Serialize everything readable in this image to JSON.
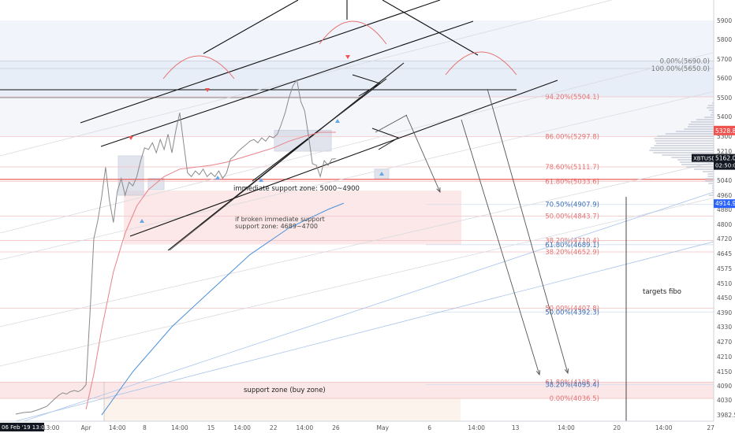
{
  "chart_data": {
    "type": "line",
    "symbol": "XBTUSD",
    "price_axis": {
      "ticks": [
        3982.5,
        4030,
        4090,
        4150,
        4210,
        4270,
        4330,
        4390,
        4450,
        4510,
        4575,
        4645,
        4720,
        4800,
        4880,
        4960,
        5040,
        5120,
        5210,
        5300,
        5400,
        5500,
        5600,
        5700,
        5800,
        5900
      ],
      "labels": [
        "3982.5",
        "4030",
        "4090",
        "4150",
        "4210",
        "4270",
        "4330",
        "4390",
        "4450",
        "4510",
        "4575",
        "4645",
        "4720",
        "4800",
        "4880",
        "4960",
        "5040",
        "5120",
        "5210",
        "5300",
        "5400",
        "5500",
        "5600",
        "5700",
        "5800",
        "5900"
      ],
      "current_price_tag": "XBTUSD",
      "current_price": "5162.0",
      "countdown": "02:50:01",
      "last_high": "5328.8",
      "ma_price": "4914.9"
    },
    "time_axis": {
      "labels": [
        {
          "t": 0,
          "text": "06 Feb '19  13:00",
          "highlight": true
        },
        {
          "t": 9,
          "text": "13:00"
        },
        {
          "t": 18,
          "text": "Apr"
        },
        {
          "t": 26,
          "text": "14:00"
        },
        {
          "t": 33,
          "text": "8"
        },
        {
          "t": 42,
          "text": "14:00"
        },
        {
          "t": 50,
          "text": "15"
        },
        {
          "t": 58,
          "text": "14:00"
        },
        {
          "t": 66,
          "text": "22"
        },
        {
          "t": 74,
          "text": "14:00"
        },
        {
          "t": 82,
          "text": "26"
        },
        {
          "t": 94,
          "text": "May"
        },
        {
          "t": 106,
          "text": "6"
        },
        {
          "t": 118,
          "text": "14:00"
        },
        {
          "t": 128,
          "text": "13"
        },
        {
          "t": 141,
          "text": "14:00"
        },
        {
          "t": 154,
          "text": "20"
        },
        {
          "t": 166,
          "text": "14:00"
        },
        {
          "t": 178,
          "text": "27"
        }
      ]
    },
    "price_series": [
      {
        "t": 0,
        "p": 3985
      },
      {
        "t": 2,
        "p": 3990
      },
      {
        "t": 4,
        "p": 3992
      },
      {
        "t": 6,
        "p": 4000
      },
      {
        "t": 8,
        "p": 4010
      },
      {
        "t": 10,
        "p": 4035
      },
      {
        "t": 11,
        "p": 4050
      },
      {
        "t": 12,
        "p": 4060
      },
      {
        "t": 13,
        "p": 4055
      },
      {
        "t": 14,
        "p": 4065
      },
      {
        "t": 15,
        "p": 4070
      },
      {
        "t": 16,
        "p": 4065
      },
      {
        "t": 17,
        "p": 4075
      },
      {
        "t": 18,
        "p": 4095
      },
      {
        "t": 19,
        "p": 4380
      },
      {
        "t": 20,
        "p": 4720
      },
      {
        "t": 21,
        "p": 4820
      },
      {
        "t": 22,
        "p": 4950
      },
      {
        "t": 23,
        "p": 5110
      },
      {
        "t": 24,
        "p": 4930
      },
      {
        "t": 25,
        "p": 4810
      },
      {
        "t": 26,
        "p": 4980
      },
      {
        "t": 27,
        "p": 5050
      },
      {
        "t": 28,
        "p": 4960
      },
      {
        "t": 29,
        "p": 5030
      },
      {
        "t": 30,
        "p": 5010
      },
      {
        "t": 31,
        "p": 5060
      },
      {
        "t": 32,
        "p": 5150
      },
      {
        "t": 33,
        "p": 5230
      },
      {
        "t": 34,
        "p": 5220
      },
      {
        "t": 35,
        "p": 5260
      },
      {
        "t": 36,
        "p": 5200
      },
      {
        "t": 37,
        "p": 5280
      },
      {
        "t": 38,
        "p": 5220
      },
      {
        "t": 39,
        "p": 5310
      },
      {
        "t": 40,
        "p": 5200
      },
      {
        "t": 41,
        "p": 5330
      },
      {
        "t": 42,
        "p": 5420
      },
      {
        "t": 43,
        "p": 5260
      },
      {
        "t": 44,
        "p": 5080
      },
      {
        "t": 45,
        "p": 5060
      },
      {
        "t": 46,
        "p": 5090
      },
      {
        "t": 47,
        "p": 5070
      },
      {
        "t": 48,
        "p": 5100
      },
      {
        "t": 49,
        "p": 5060
      },
      {
        "t": 50,
        "p": 5080
      },
      {
        "t": 51,
        "p": 5060
      },
      {
        "t": 52,
        "p": 5090
      },
      {
        "t": 53,
        "p": 5050
      },
      {
        "t": 54,
        "p": 5080
      },
      {
        "t": 55,
        "p": 5160
      },
      {
        "t": 56,
        "p": 5180
      },
      {
        "t": 57,
        "p": 5210
      },
      {
        "t": 58,
        "p": 5230
      },
      {
        "t": 59,
        "p": 5250
      },
      {
        "t": 60,
        "p": 5270
      },
      {
        "t": 61,
        "p": 5280
      },
      {
        "t": 62,
        "p": 5260
      },
      {
        "t": 63,
        "p": 5290
      },
      {
        "t": 64,
        "p": 5270
      },
      {
        "t": 65,
        "p": 5300
      },
      {
        "t": 66,
        "p": 5290
      },
      {
        "t": 67,
        "p": 5310
      },
      {
        "t": 68,
        "p": 5360
      },
      {
        "t": 69,
        "p": 5420
      },
      {
        "t": 70,
        "p": 5500
      },
      {
        "t": 71,
        "p": 5560
      },
      {
        "t": 72,
        "p": 5590
      },
      {
        "t": 73,
        "p": 5480
      },
      {
        "t": 74,
        "p": 5430
      },
      {
        "t": 75,
        "p": 5300
      },
      {
        "t": 76,
        "p": 5130
      },
      {
        "t": 77,
        "p": 5120
      },
      {
        "t": 78,
        "p": 5060
      },
      {
        "t": 79,
        "p": 5150
      },
      {
        "t": 80,
        "p": 5120
      },
      {
        "t": 81,
        "p": 5160
      },
      {
        "t": 82,
        "p": 5162
      }
    ],
    "ma_red": [
      {
        "t": 18,
        "p": 4000
      },
      {
        "t": 20,
        "p": 4140
      },
      {
        "t": 22,
        "p": 4320
      },
      {
        "t": 25,
        "p": 4560
      },
      {
        "t": 28,
        "p": 4750
      },
      {
        "t": 31,
        "p": 4900
      },
      {
        "t": 34,
        "p": 4990
      },
      {
        "t": 38,
        "p": 5060
      },
      {
        "t": 42,
        "p": 5100
      },
      {
        "t": 46,
        "p": 5110
      },
      {
        "t": 50,
        "p": 5120
      },
      {
        "t": 54,
        "p": 5140
      },
      {
        "t": 58,
        "p": 5170
      },
      {
        "t": 62,
        "p": 5200
      },
      {
        "t": 66,
        "p": 5230
      },
      {
        "t": 70,
        "p": 5270
      },
      {
        "t": 74,
        "p": 5300
      },
      {
        "t": 78,
        "p": 5320
      },
      {
        "t": 82,
        "p": 5320
      }
    ],
    "ma_blue": [
      {
        "t": 22,
        "p": 3982
      },
      {
        "t": 30,
        "p": 4150
      },
      {
        "t": 40,
        "p": 4330
      },
      {
        "t": 50,
        "p": 4480
      },
      {
        "t": 60,
        "p": 4640
      },
      {
        "t": 70,
        "p": 4780
      },
      {
        "t": 80,
        "p": 4880
      },
      {
        "t": 84,
        "p": 4914.9
      }
    ],
    "fib_red": [
      {
        "label": "0.00%(5690.0)",
        "price": 5690.0
      },
      {
        "label": "100.00%(5650.0)",
        "price": 5650.0
      },
      {
        "label": "94.20%(5504.1)",
        "price": 5504.1
      },
      {
        "label": "86.00%(5297.8)",
        "price": 5297.8
      },
      {
        "label": "78.60%(5111.7)",
        "price": 5111.7
      },
      {
        "label": "61.80%(5033.6)",
        "price": 5033.6
      },
      {
        "label": "50.00%(4843.7)",
        "price": 4843.7
      },
      {
        "label": "38.20%(4710.4)",
        "price": 4710.4
      },
      {
        "label": "38.20%(4652.9)",
        "price": 4652.9
      },
      {
        "label": "50.00%(4407.8)",
        "price": 4407.8
      },
      {
        "label": "61.80%(4105.2)",
        "price": 4105.2
      },
      {
        "label": "0.00%(4036.5)",
        "price": 4036.5
      }
    ],
    "fib_blue": [
      {
        "label": "70.50%(4907.9)",
        "price": 4907.9
      },
      {
        "label": "61.80%(4689.1)",
        "price": 4689.1
      },
      {
        "label": "50.00%(4392.3)",
        "price": 4392.3
      },
      {
        "label": "38.20%(4095.4)",
        "price": 4095.4
      }
    ],
    "annotations": [
      "immediate support zone: 5000~4900",
      "if broken immediate support",
      "support zone: 4689~4700",
      "support zone (buy zone)",
      "targets fibo"
    ],
    "colors": {
      "price": "#8a8a8a",
      "ma_red": "#e8838a",
      "ma_blue": "#4a90d9",
      "fib_red": "#e57373",
      "fib_blue": "#3d6fb5",
      "zone_pink": "#fbe4e4",
      "zone_blue": "#e6ecf7",
      "support_line": "#e53935",
      "tag_dark": "#131722",
      "tag_red": "#ef5350",
      "tag_blue": "#2962ff"
    }
  }
}
